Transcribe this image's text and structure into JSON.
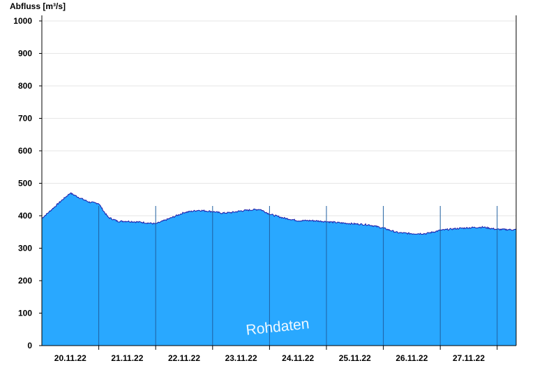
{
  "chart_data": {
    "type": "area",
    "ylabel": "Abfluss [m³/s]",
    "ylim": [
      0,
      1000
    ],
    "yticks": [
      0,
      100,
      200,
      300,
      400,
      500,
      600,
      700,
      800,
      900,
      1000
    ],
    "xlim": [
      "2022-11-19T12:00",
      "2022-11-27T20:00"
    ],
    "day_boundaries": [
      "2022-11-20T12:00",
      "2022-11-21T12:00",
      "2022-11-22T12:00",
      "2022-11-23T12:00",
      "2022-11-24T12:00",
      "2022-11-25T12:00",
      "2022-11-26T12:00",
      "2022-11-27T12:00"
    ],
    "xtick_labels": [
      "20.11.22",
      "21.11.22",
      "22.11.22",
      "23.11.22",
      "24.11.22",
      "25.11.22",
      "26.11.22",
      "27.11.22"
    ],
    "xtick_positions": [
      "2022-11-20T00:00",
      "2022-11-21T00:00",
      "2022-11-22T00:00",
      "2022-11-23T00:00",
      "2022-11-24T00:00",
      "2022-11-25T00:00",
      "2022-11-26T00:00",
      "2022-11-27T00:00"
    ],
    "grid": true,
    "fill_color": "#29a8ff",
    "line_color": "#1a1aa8",
    "annotation": "Rohdaten",
    "series": [
      {
        "x": [
          "2022-11-19T12:00",
          "2022-11-19T16:00",
          "2022-11-19T20:00",
          "2022-11-20T00:00",
          "2022-11-20T04:00",
          "2022-11-20T08:00",
          "2022-11-20T12:00",
          "2022-11-20T14:00",
          "2022-11-20T16:00",
          "2022-11-20T20:00",
          "2022-11-21T00:00",
          "2022-11-21T06:00",
          "2022-11-21T12:00",
          "2022-11-21T18:00",
          "2022-11-22T00:00",
          "2022-11-22T06:00",
          "2022-11-22T12:00",
          "2022-11-22T16:00",
          "2022-11-22T20:00",
          "2022-11-23T00:00",
          "2022-11-23T04:00",
          "2022-11-23T08:00",
          "2022-11-23T12:00",
          "2022-11-23T18:00",
          "2022-11-24T00:00",
          "2022-11-24T06:00",
          "2022-11-24T12:00",
          "2022-11-24T18:00",
          "2022-11-25T00:00",
          "2022-11-25T06:00",
          "2022-11-25T12:00",
          "2022-11-25T18:00",
          "2022-11-26T00:00",
          "2022-11-26T06:00",
          "2022-11-26T12:00",
          "2022-11-26T18:00",
          "2022-11-27T00:00",
          "2022-11-27T06:00",
          "2022-11-27T12:00",
          "2022-11-27T20:00"
        ],
        "y": [
          392,
          418,
          445,
          470,
          455,
          442,
          438,
          415,
          395,
          383,
          383,
          380,
          375,
          392,
          410,
          417,
          413,
          408,
          410,
          415,
          418,
          420,
          405,
          393,
          385,
          385,
          382,
          378,
          375,
          372,
          362,
          348,
          345,
          345,
          355,
          360,
          363,
          365,
          358,
          357
        ]
      }
    ]
  }
}
